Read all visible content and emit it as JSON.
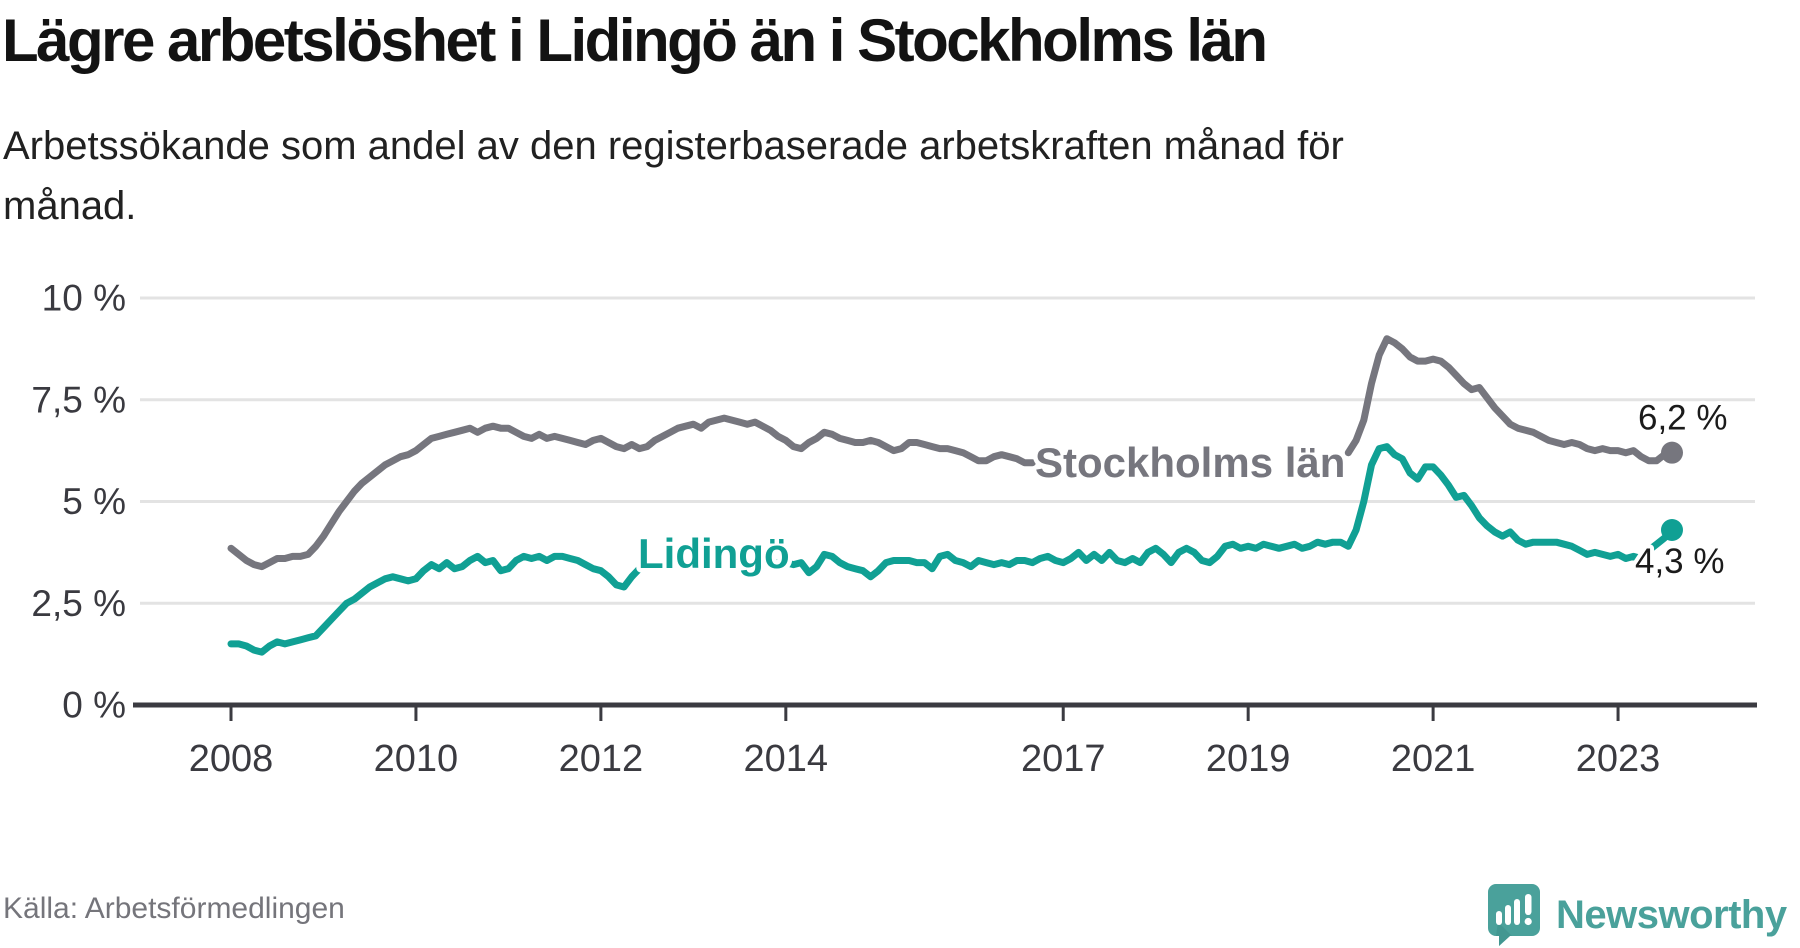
{
  "title": "Lägre arbetslöshet i Lidingö än i Stockholms län",
  "subtitle": "Arbetssökande som andel av den registerbaserade arbetskraften månad för månad.",
  "source": "Källa: Arbetsförmedlingen",
  "brand": {
    "name": "Newsworthy",
    "icon": "speech-bubble-bar-chart-icon",
    "color": "#4aa19b"
  },
  "chart_data": {
    "type": "line",
    "title": "Lägre arbetslöshet i Lidingö än i Stockholms län",
    "xlabel": "",
    "ylabel": "Arbetssökande som andel av den registerbaserade arbetskraften",
    "unit": "%",
    "ylim": [
      0,
      10
    ],
    "grid": "horizontal",
    "start_year": 2008,
    "start_month": 1,
    "points_per_year": 12,
    "y_ticks": [
      {
        "label": "10 %",
        "value": 10
      },
      {
        "label": "7,5 %",
        "value": 7.5
      },
      {
        "label": "5 %",
        "value": 5
      },
      {
        "label": "2,5 %",
        "value": 2.5
      },
      {
        "label": "0 %",
        "value": 0
      }
    ],
    "x_ticks": [
      {
        "label": "2008",
        "year": 2008
      },
      {
        "label": "2010",
        "year": 2010
      },
      {
        "label": "2012",
        "year": 2012
      },
      {
        "label": "2014",
        "year": 2014
      },
      {
        "label": "2017",
        "year": 2017
      },
      {
        "label": "2019",
        "year": 2019
      },
      {
        "label": "2021",
        "year": 2021
      },
      {
        "label": "2023",
        "year": 2023
      }
    ],
    "series": [
      {
        "name": "Stockholms län",
        "color": "#76767e",
        "end_label": "6,2 %",
        "end_value": 6.2,
        "label_inline": true,
        "gap_hidden_by_label": [
          105,
          144
        ],
        "values": [
          3.85,
          3.7,
          3.55,
          3.45,
          3.4,
          3.5,
          3.6,
          3.6,
          3.65,
          3.65,
          3.7,
          3.9,
          4.15,
          4.45,
          4.75,
          5.0,
          5.25,
          5.45,
          5.6,
          5.75,
          5.9,
          6.0,
          6.1,
          6.15,
          6.25,
          6.4,
          6.55,
          6.6,
          6.65,
          6.7,
          6.75,
          6.8,
          6.7,
          6.8,
          6.85,
          6.8,
          6.8,
          6.7,
          6.6,
          6.55,
          6.65,
          6.55,
          6.6,
          6.55,
          6.5,
          6.45,
          6.4,
          6.5,
          6.55,
          6.45,
          6.35,
          6.3,
          6.4,
          6.3,
          6.35,
          6.5,
          6.6,
          6.7,
          6.8,
          6.85,
          6.9,
          6.8,
          6.95,
          7.0,
          7.05,
          7.0,
          6.95,
          6.9,
          6.95,
          6.85,
          6.75,
          6.6,
          6.5,
          6.35,
          6.3,
          6.45,
          6.55,
          6.7,
          6.65,
          6.55,
          6.5,
          6.45,
          6.45,
          6.5,
          6.45,
          6.35,
          6.25,
          6.3,
          6.45,
          6.45,
          6.4,
          6.35,
          6.3,
          6.3,
          6.25,
          6.2,
          6.1,
          6.0,
          6.0,
          6.1,
          6.15,
          6.1,
          6.05,
          5.95,
          5.95,
          5.9,
          5.85,
          5.8,
          5.8,
          5.85,
          5.9,
          5.9,
          5.85,
          5.8,
          5.85,
          5.9,
          5.9,
          5.85,
          5.8,
          5.8,
          5.8,
          5.75,
          5.7,
          5.65,
          5.6,
          5.55,
          5.6,
          5.65,
          5.6,
          5.55,
          5.5,
          5.55,
          5.6,
          5.65,
          5.7,
          5.75,
          5.8,
          5.85,
          5.9,
          5.95,
          6.0,
          6.0,
          6.05,
          6.1,
          6.15,
          6.2,
          6.5,
          7.0,
          7.9,
          8.6,
          9.0,
          8.9,
          8.75,
          8.55,
          8.45,
          8.45,
          8.5,
          8.45,
          8.3,
          8.1,
          7.9,
          7.75,
          7.8,
          7.55,
          7.3,
          7.1,
          6.9,
          6.8,
          6.75,
          6.7,
          6.6,
          6.5,
          6.45,
          6.4,
          6.45,
          6.4,
          6.3,
          6.25,
          6.3,
          6.25,
          6.25,
          6.2,
          6.25,
          6.1,
          6.0,
          6.0,
          6.15,
          6.2
        ]
      },
      {
        "name": "Lidingö",
        "color": "#10a094",
        "end_label": "4,3 %",
        "end_value": 4.3,
        "label_inline": true,
        "gap_hidden_by_label": null,
        "values": [
          1.5,
          1.5,
          1.45,
          1.35,
          1.3,
          1.45,
          1.55,
          1.5,
          1.55,
          1.6,
          1.65,
          1.7,
          1.9,
          2.1,
          2.3,
          2.5,
          2.6,
          2.75,
          2.9,
          3.0,
          3.1,
          3.15,
          3.1,
          3.05,
          3.1,
          3.3,
          3.45,
          3.35,
          3.5,
          3.35,
          3.4,
          3.55,
          3.65,
          3.5,
          3.55,
          3.3,
          3.35,
          3.55,
          3.65,
          3.6,
          3.65,
          3.55,
          3.65,
          3.65,
          3.6,
          3.55,
          3.45,
          3.35,
          3.3,
          3.15,
          2.95,
          2.9,
          3.15,
          3.35,
          3.45,
          3.5,
          3.45,
          3.5,
          3.45,
          3.4,
          3.45,
          3.5,
          3.55,
          3.5,
          3.45,
          3.5,
          3.55,
          3.5,
          3.45,
          3.5,
          3.45,
          3.5,
          3.5,
          3.45,
          3.5,
          3.25,
          3.4,
          3.7,
          3.65,
          3.5,
          3.4,
          3.35,
          3.3,
          3.15,
          3.3,
          3.5,
          3.55,
          3.55,
          3.55,
          3.5,
          3.5,
          3.35,
          3.65,
          3.7,
          3.55,
          3.5,
          3.4,
          3.55,
          3.5,
          3.45,
          3.5,
          3.45,
          3.55,
          3.55,
          3.5,
          3.6,
          3.65,
          3.55,
          3.5,
          3.6,
          3.75,
          3.55,
          3.7,
          3.55,
          3.75,
          3.55,
          3.5,
          3.6,
          3.5,
          3.75,
          3.85,
          3.7,
          3.5,
          3.75,
          3.85,
          3.75,
          3.55,
          3.5,
          3.65,
          3.9,
          3.95,
          3.85,
          3.9,
          3.85,
          3.95,
          3.9,
          3.85,
          3.9,
          3.95,
          3.85,
          3.9,
          4.0,
          3.95,
          4.0,
          4.0,
          3.9,
          4.3,
          5.0,
          5.9,
          6.3,
          6.35,
          6.15,
          6.05,
          5.7,
          5.55,
          5.85,
          5.85,
          5.65,
          5.4,
          5.1,
          5.15,
          4.9,
          4.6,
          4.4,
          4.25,
          4.15,
          4.25,
          4.05,
          3.95,
          4.0,
          4.0,
          4.0,
          4.0,
          3.95,
          3.9,
          3.8,
          3.7,
          3.75,
          3.7,
          3.65,
          3.7,
          3.6,
          3.65,
          3.6,
          3.8,
          3.95,
          4.1,
          4.3
        ]
      }
    ]
  }
}
